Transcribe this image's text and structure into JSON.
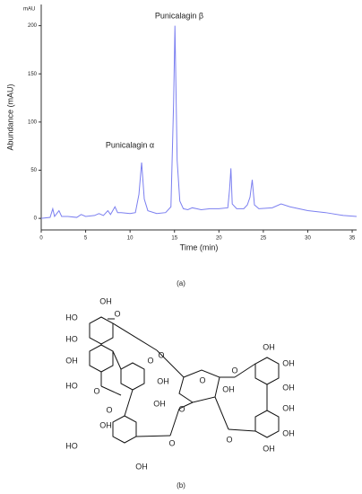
{
  "chart_data": {
    "type": "line",
    "y_unit": "mAU",
    "ylabel": "Abundance (mAU)",
    "xlabel": "Time (min)",
    "annotations": [
      "Punicalagin α",
      "Punicalagin β"
    ],
    "x": [
      0,
      1.0,
      1.3,
      1.5,
      2.0,
      2.3,
      3,
      4,
      4.5,
      5,
      6,
      6.5,
      7,
      7.5,
      7.8,
      8.3,
      8.6,
      9,
      10,
      10.6,
      11.0,
      11.3,
      11.6,
      12,
      13,
      14,
      14.6,
      14.9,
      15.05,
      15.3,
      15.6,
      16,
      16.5,
      17,
      17.5,
      18,
      19,
      20,
      21,
      21.2,
      21.35,
      21.5,
      22,
      22.8,
      23.2,
      23.5,
      23.75,
      24.0,
      24.5,
      26,
      27,
      28,
      30,
      32,
      34,
      35.5
    ],
    "values": [
      0,
      1,
      10,
      2,
      8,
      2,
      2,
      1,
      4,
      2,
      3,
      5,
      3,
      8,
      4,
      12,
      6,
      6,
      5,
      6,
      25,
      58,
      20,
      8,
      5,
      6,
      12,
      120,
      200,
      60,
      18,
      10,
      9,
      11,
      10,
      9,
      10,
      10,
      11,
      30,
      52,
      15,
      10,
      10,
      14,
      22,
      40,
      14,
      10,
      11,
      15,
      12,
      8,
      6,
      3,
      2
    ],
    "color": "#7b7ff0",
    "xlim": [
      0,
      35.5
    ],
    "ylim": [
      -12,
      222
    ],
    "xticks": [
      0,
      5,
      10,
      15,
      20,
      25,
      30,
      35
    ],
    "yticks": [
      0,
      50,
      100,
      150,
      200
    ]
  },
  "figure": {
    "panel_a": "(a)",
    "panel_b": "(b)",
    "structure_labels": [
      "OH",
      "HO",
      "HO",
      "O",
      "O",
      "OH",
      "O",
      "HO",
      "O",
      "OH",
      "OH",
      "O",
      "OH",
      "O",
      "O",
      "O",
      "O",
      "OH",
      "OH",
      "OH",
      "OH",
      "OH",
      "OH",
      "OH",
      "HO",
      "OH",
      "O"
    ]
  }
}
